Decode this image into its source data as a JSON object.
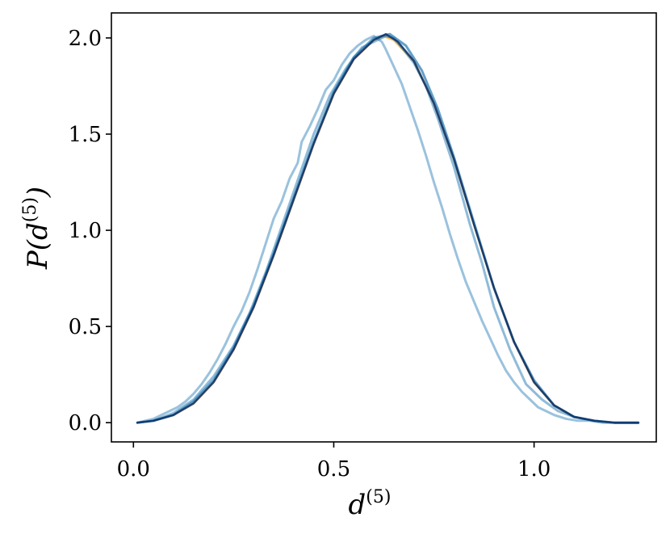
{
  "chart_data": {
    "type": "line",
    "xlabel": {
      "base": "d",
      "sup": "(5)"
    },
    "ylabel": {
      "prefix": "P(",
      "base": "d",
      "sup": "(5)",
      "suffix": ")"
    },
    "xlim": [
      -0.055,
      1.305
    ],
    "ylim": [
      -0.1,
      2.13
    ],
    "xticks": [
      0.0,
      0.5,
      1.0
    ],
    "xtick_labels": [
      "0.0",
      "0.5",
      "1.0"
    ],
    "yticks": [
      0.0,
      0.5,
      1.0,
      1.5,
      2.0
    ],
    "ytick_labels": [
      "0.0",
      "0.5",
      "1.0",
      "1.5",
      "2.0"
    ],
    "grid": false,
    "series": [
      {
        "color": "#f5a623",
        "opacity": 0.75,
        "width": 3,
        "x": [
          0.01,
          0.05,
          0.1,
          0.15,
          0.2,
          0.25,
          0.3,
          0.35,
          0.4,
          0.45,
          0.5,
          0.55,
          0.6,
          0.625,
          0.65,
          0.7,
          0.75,
          0.8,
          0.85,
          0.9,
          0.95,
          1.0,
          1.05,
          1.1,
          1.15,
          1.2,
          1.26
        ],
        "y": [
          0.0,
          0.01,
          0.04,
          0.1,
          0.21,
          0.38,
          0.6,
          0.87,
          1.16,
          1.45,
          1.71,
          1.89,
          1.99,
          2.01,
          1.99,
          1.88,
          1.66,
          1.37,
          1.03,
          0.7,
          0.42,
          0.21,
          0.09,
          0.03,
          0.01,
          0.0,
          0.0
        ]
      },
      {
        "color": "#1f77b4",
        "opacity": 0.45,
        "width": 3,
        "x": [
          0.01,
          0.03,
          0.05,
          0.07,
          0.09,
          0.11,
          0.13,
          0.15,
          0.17,
          0.19,
          0.21,
          0.23,
          0.25,
          0.27,
          0.29,
          0.31,
          0.33,
          0.35,
          0.37,
          0.39,
          0.41,
          0.42,
          0.44,
          0.46,
          0.48,
          0.5,
          0.52,
          0.54,
          0.56,
          0.58,
          0.6,
          0.62,
          0.63,
          0.65,
          0.67,
          0.69,
          0.71,
          0.73,
          0.75,
          0.77,
          0.79,
          0.81,
          0.83,
          0.85,
          0.87,
          0.89,
          0.91,
          0.93,
          0.95,
          0.97,
          0.99,
          1.01,
          1.03,
          1.05,
          1.08,
          1.11,
          1.14,
          1.17,
          1.2,
          1.26
        ],
        "y": [
          0.0,
          0.01,
          0.02,
          0.04,
          0.06,
          0.08,
          0.11,
          0.15,
          0.2,
          0.26,
          0.33,
          0.41,
          0.5,
          0.58,
          0.68,
          0.8,
          0.93,
          1.06,
          1.15,
          1.27,
          1.35,
          1.46,
          1.54,
          1.63,
          1.73,
          1.78,
          1.86,
          1.92,
          1.96,
          1.99,
          2.01,
          1.98,
          1.94,
          1.85,
          1.76,
          1.64,
          1.52,
          1.39,
          1.25,
          1.12,
          0.98,
          0.85,
          0.73,
          0.63,
          0.53,
          0.44,
          0.35,
          0.27,
          0.21,
          0.16,
          0.12,
          0.08,
          0.06,
          0.04,
          0.02,
          0.01,
          0.01,
          0.0,
          0.0,
          0.0
        ]
      },
      {
        "color": "#1f77b4",
        "opacity": 0.5,
        "width": 3,
        "x": [
          0.01,
          0.05,
          0.1,
          0.15,
          0.2,
          0.25,
          0.29,
          0.33,
          0.37,
          0.41,
          0.45,
          0.49,
          0.53,
          0.57,
          0.61,
          0.63,
          0.65,
          0.67,
          0.7,
          0.73,
          0.76,
          0.8,
          0.84,
          0.87,
          0.9,
          0.94,
          0.98,
          1.02,
          1.06,
          1.1,
          1.15,
          1.2,
          1.26
        ],
        "y": [
          0.0,
          0.01,
          0.05,
          0.12,
          0.24,
          0.4,
          0.57,
          0.78,
          1.02,
          1.26,
          1.5,
          1.7,
          1.84,
          1.95,
          1.99,
          2.01,
          2.0,
          1.95,
          1.87,
          1.75,
          1.58,
          1.33,
          1.03,
          0.83,
          0.6,
          0.38,
          0.2,
          0.12,
          0.06,
          0.03,
          0.01,
          0.0,
          0.0
        ]
      },
      {
        "color": "#1f77b4",
        "opacity": 0.7,
        "width": 3,
        "x": [
          0.01,
          0.05,
          0.1,
          0.15,
          0.2,
          0.25,
          0.3,
          0.35,
          0.4,
          0.45,
          0.5,
          0.55,
          0.6,
          0.64,
          0.68,
          0.72,
          0.76,
          0.8,
          0.85,
          0.9,
          0.95,
          1.0,
          1.05,
          1.1,
          1.15,
          1.2,
          1.26
        ],
        "y": [
          0.0,
          0.01,
          0.04,
          0.11,
          0.22,
          0.39,
          0.61,
          0.88,
          1.17,
          1.46,
          1.72,
          1.9,
          2.0,
          2.02,
          1.96,
          1.83,
          1.63,
          1.38,
          1.04,
          0.7,
          0.42,
          0.22,
          0.09,
          0.03,
          0.01,
          0.0,
          0.0
        ]
      },
      {
        "color": "#0b2f6b",
        "opacity": 0.85,
        "width": 2.5,
        "x": [
          0.01,
          0.05,
          0.1,
          0.15,
          0.2,
          0.25,
          0.3,
          0.35,
          0.4,
          0.45,
          0.5,
          0.55,
          0.6,
          0.63,
          0.66,
          0.7,
          0.75,
          0.8,
          0.85,
          0.9,
          0.95,
          1.0,
          1.05,
          1.1,
          1.15,
          1.2,
          1.26
        ],
        "y": [
          0.0,
          0.01,
          0.04,
          0.1,
          0.21,
          0.38,
          0.6,
          0.87,
          1.16,
          1.45,
          1.71,
          1.89,
          1.99,
          2.02,
          1.98,
          1.88,
          1.66,
          1.37,
          1.03,
          0.7,
          0.42,
          0.21,
          0.09,
          0.03,
          0.01,
          0.0,
          0.0
        ]
      }
    ]
  }
}
